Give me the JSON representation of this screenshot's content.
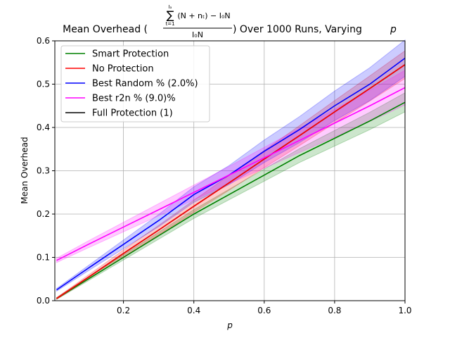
{
  "chart_data": {
    "type": "line",
    "title": {
      "before": "Mean Overhead (",
      "sum_upper": "Iₐ",
      "sum_symbol": "∑",
      "sum_lower": "t=1",
      "numerator": "(N + nₜ) − I₀N",
      "denominator": "I₀N",
      "after": ") Over 1000 Runs, Varying",
      "variable": "p"
    },
    "x_label": "p",
    "y_label": "Mean Overhead",
    "x": [
      0.01,
      0.1,
      0.2,
      0.3,
      0.4,
      0.5,
      0.6,
      0.7,
      0.8,
      0.9,
      1.0
    ],
    "series": [
      {
        "name": "Smart Protection",
        "color": "#008000",
        "values": [
          0.005,
          0.05,
          0.1,
          0.15,
          0.2,
          0.245,
          0.29,
          0.335,
          0.375,
          0.415,
          0.458
        ],
        "std": [
          0.002,
          0.004,
          0.006,
          0.008,
          0.01,
          0.012,
          0.014,
          0.016,
          0.018,
          0.02,
          0.022
        ]
      },
      {
        "name": "No Protection",
        "color": "#ff0000",
        "values": [
          0.005,
          0.054,
          0.109,
          0.163,
          0.218,
          0.272,
          0.327,
          0.381,
          0.436,
          0.49,
          0.545
        ],
        "std": [
          0.002,
          0.005,
          0.008,
          0.011,
          0.014,
          0.017,
          0.02,
          0.023,
          0.026,
          0.029,
          0.032
        ]
      },
      {
        "name": "Best Random % (2.0%)",
        "color": "#0000ff",
        "values": [
          0.025,
          0.075,
          0.13,
          0.185,
          0.245,
          0.29,
          0.345,
          0.395,
          0.45,
          0.5,
          0.56
        ],
        "std": [
          0.003,
          0.006,
          0.01,
          0.014,
          0.018,
          0.022,
          0.026,
          0.03,
          0.034,
          0.038,
          0.042
        ]
      },
      {
        "name": "Best r2n % (9.0)%",
        "color": "#ff00ff",
        "values": [
          0.093,
          0.13,
          0.17,
          0.21,
          0.25,
          0.29,
          0.33,
          0.37,
          0.41,
          0.45,
          0.492
        ],
        "std": [
          0.005,
          0.008,
          0.011,
          0.014,
          0.017,
          0.02,
          0.024,
          0.028,
          0.032,
          0.036,
          0.04
        ]
      },
      {
        "name": "Full Protection (1)",
        "color": "#000000",
        "values": [
          0.005,
          0.054,
          0.109,
          0.163,
          0.218,
          0.272,
          0.327,
          0.381,
          0.436,
          0.49,
          0.545
        ]
      }
    ],
    "draw_order": [
      4,
      0,
      1,
      2,
      3
    ],
    "xlim": [
      0.005,
      1.0
    ],
    "ylim": [
      0,
      0.6
    ],
    "xticks": [
      0.2,
      0.4,
      0.6,
      0.8,
      {
        "value": 1.0,
        "label": "1.0"
      }
    ],
    "yticks": [
      {
        "value": 0,
        "label": "0.0"
      },
      0.1,
      0.2,
      0.3,
      0.4,
      0.5,
      0.6
    ],
    "grid": true,
    "legend": "upper left"
  }
}
